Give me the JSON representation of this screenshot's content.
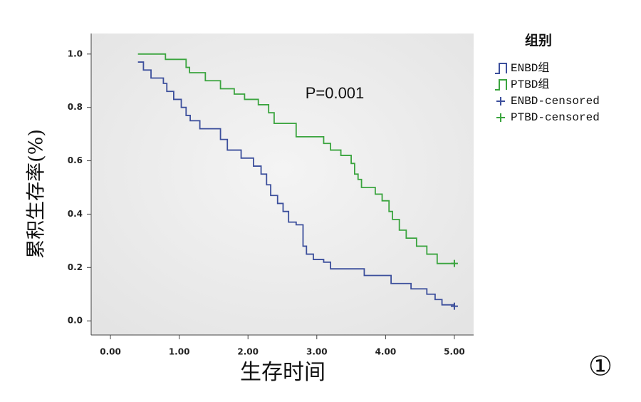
{
  "chart_data": {
    "type": "line",
    "step": true,
    "xlabel": "生存时间",
    "ylabel": "累积生存率(%)",
    "annotation": "P=0.001",
    "legend_title": "组别",
    "figure_label": "①",
    "xlim": [
      -0.28,
      5.28
    ],
    "ylim": [
      -0.053,
      1.077
    ],
    "xticks": [
      {
        "value": 0,
        "label": "0.00"
      },
      {
        "value": 1,
        "label": "1.00"
      },
      {
        "value": 2,
        "label": "2.00"
      },
      {
        "value": 3,
        "label": "3.00"
      },
      {
        "value": 4,
        "label": "4.00"
      },
      {
        "value": 5,
        "label": "5.00"
      }
    ],
    "yticks": [
      {
        "value": 0,
        "label": "0.0"
      },
      0.2,
      0.4,
      0.6,
      0.8,
      {
        "value": 1,
        "label": "1.0"
      }
    ],
    "series": [
      {
        "name": "ENBD组",
        "color": "#3c4f9c",
        "x": [
          0.4,
          0.48,
          0.59,
          0.77,
          0.82,
          0.92,
          1.03,
          1.1,
          1.16,
          1.3,
          1.6,
          1.7,
          1.9,
          2.08,
          2.19,
          2.27,
          2.33,
          2.43,
          2.51,
          2.59,
          2.7,
          2.8,
          2.85,
          2.95,
          3.1,
          3.2,
          3.69,
          4.08,
          4.37,
          4.6,
          4.72,
          4.82,
          5.0
        ],
        "values": [
          0.97,
          0.94,
          0.91,
          0.89,
          0.86,
          0.83,
          0.8,
          0.77,
          0.75,
          0.72,
          0.68,
          0.64,
          0.61,
          0.58,
          0.55,
          0.51,
          0.47,
          0.44,
          0.41,
          0.37,
          0.36,
          0.28,
          0.25,
          0.23,
          0.22,
          0.195,
          0.17,
          0.14,
          0.12,
          0.1,
          0.08,
          0.06,
          0.055
        ]
      },
      {
        "name": "PTBD组",
        "color": "#3aa43e",
        "x": [
          0.4,
          0.8,
          1.1,
          1.15,
          1.38,
          1.6,
          1.8,
          1.95,
          2.15,
          2.3,
          2.38,
          2.7,
          3.1,
          3.2,
          3.35,
          3.5,
          3.55,
          3.6,
          3.65,
          3.85,
          3.95,
          4.05,
          4.1,
          4.2,
          4.3,
          4.45,
          4.6,
          4.75,
          5.0
        ],
        "values": [
          1.0,
          0.98,
          0.95,
          0.93,
          0.9,
          0.87,
          0.85,
          0.83,
          0.81,
          0.78,
          0.74,
          0.69,
          0.665,
          0.64,
          0.62,
          0.59,
          0.55,
          0.53,
          0.5,
          0.475,
          0.45,
          0.41,
          0.38,
          0.34,
          0.31,
          0.28,
          0.25,
          0.215,
          0.215
        ]
      },
      {
        "name": "ENBD-censored",
        "color": "#3c4f9c",
        "marker": "+",
        "x": [
          5.0
        ],
        "values": [
          0.055
        ]
      },
      {
        "name": "PTBD-censored",
        "color": "#3aa43e",
        "marker": "+",
        "x": [
          5.0
        ],
        "values": [
          0.215
        ]
      }
    ]
  }
}
